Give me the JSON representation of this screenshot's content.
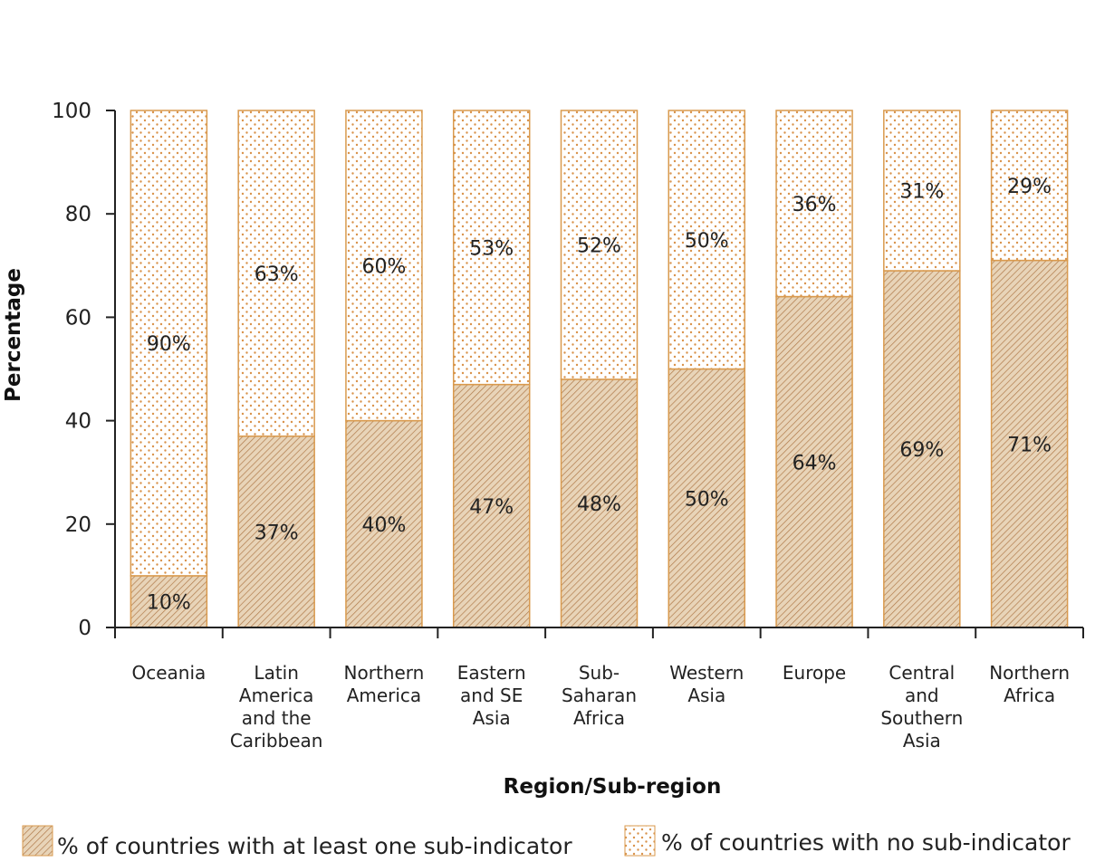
{
  "chart_data": {
    "type": "bar",
    "stacked": true,
    "xlabel": "Region/Sub-region",
    "ylabel": "Percentage",
    "ylim": [
      0,
      100
    ],
    "yticks": [
      "0",
      "20",
      "40",
      "60",
      "80",
      "100"
    ],
    "categories": [
      [
        "Oceania"
      ],
      [
        "Latin",
        "America",
        "and the",
        "Caribbean"
      ],
      [
        "Northern",
        "America"
      ],
      [
        "Eastern",
        "and SE",
        "Asia"
      ],
      [
        "Sub-",
        "Saharan",
        "Africa"
      ],
      [
        "Western",
        "Asia"
      ],
      [
        "Europe"
      ],
      [
        "Central",
        "and",
        "Southern",
        "Asia"
      ],
      [
        "Northern",
        "Africa"
      ]
    ],
    "series": [
      {
        "name": "% of countries with at least one sub-indicator",
        "pattern": "hatch",
        "values": [
          10,
          37,
          40,
          47,
          48,
          50,
          64,
          69,
          71
        ],
        "labels": [
          "10%",
          "37%",
          "40%",
          "47%",
          "48%",
          "50%",
          "64%",
          "69%",
          "71%"
        ]
      },
      {
        "name": "% of countries with no sub-indicator",
        "pattern": "dots",
        "values": [
          90,
          63,
          60,
          53,
          52,
          50,
          36,
          31,
          29
        ],
        "labels": [
          "90%",
          "63%",
          "60%",
          "53%",
          "52%",
          "50%",
          "36%",
          "31%",
          "29%"
        ]
      }
    ],
    "colors": {
      "accent": "#d99a4e",
      "hatch_line": "#b07a4a",
      "dot": "#d9924a"
    },
    "legend_position": "bottom",
    "grid": false
  }
}
